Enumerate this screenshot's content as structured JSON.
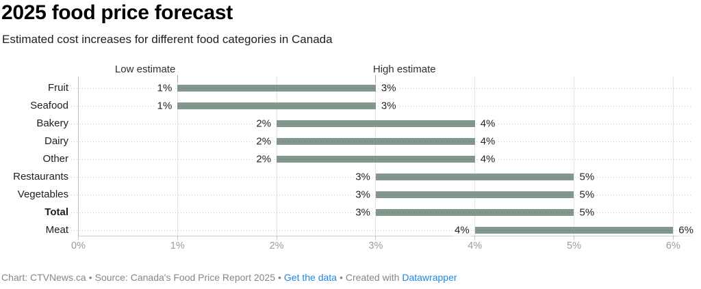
{
  "chart_data": {
    "type": "bar",
    "variant": "range-bar",
    "title": "2025 food price forecast",
    "subtitle": "Estimated cost increases for different food categories in Canada",
    "categories": [
      "Fruit",
      "Seafood",
      "Bakery",
      "Dairy",
      "Other",
      "Restaurants",
      "Vegetables",
      "Total",
      "Meat"
    ],
    "series": [
      {
        "name": "Low estimate",
        "values": [
          1,
          1,
          2,
          2,
          2,
          3,
          3,
          3,
          4
        ]
      },
      {
        "name": "High estimate",
        "values": [
          3,
          3,
          4,
          4,
          4,
          5,
          5,
          5,
          6
        ]
      }
    ],
    "bold_category": "Total",
    "value_suffix": "%",
    "xlim": [
      0,
      6
    ],
    "x_tick_labels": [
      "0%",
      "1%",
      "2%",
      "3%",
      "4%",
      "5%",
      "6%"
    ],
    "grid": "vertical solid gridlines, dotted horizontal row leaders",
    "legend_position": "column headers above first row",
    "colors": {
      "bar": "#84978c",
      "value_label": "#222222",
      "category_label": "#1d1d1d",
      "column_header": "#2e2e2e",
      "axis_tick_label": "#9b9b9b",
      "gridline": "#e5e5e5",
      "zero_gridline": "#bdbdbd",
      "baseline": "#cccccc"
    }
  },
  "footer": {
    "credit": "Chart: CTVNews.ca",
    "sep1": "•",
    "source": "Source: Canada's Food Price Report 2025",
    "sep2": "•",
    "data_link": "Get the data",
    "sep3": "•",
    "created_with": "Created with",
    "brand_link": "Datawrapper",
    "link_color": "#1e87dd",
    "text_color": "#868686"
  }
}
